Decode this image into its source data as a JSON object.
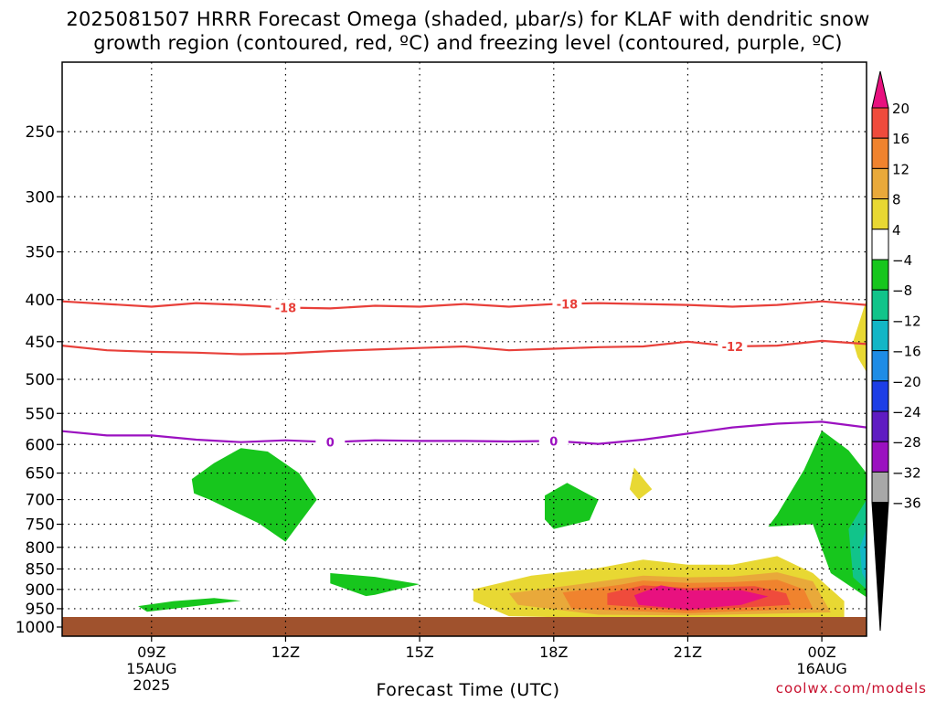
{
  "chart_data": {
    "type": "heatmap",
    "title_line1": "2025081507 HRRR Forecast Omega (shaded, µbar/s) for KLAF with dendritic snow",
    "title_line2": "growth region (contoured, red, ºC) and freezing level (contoured, purple, ºC)",
    "xlabel": "Forecast Time (UTC)",
    "ylabel": "",
    "y_axis": {
      "scale": "pressure (hPa), increasing downward",
      "ticks": [
        250,
        300,
        350,
        400,
        450,
        500,
        550,
        600,
        650,
        700,
        750,
        800,
        850,
        900,
        950,
        1000
      ],
      "ylim": [
        1000,
        200
      ]
    },
    "x_axis": {
      "start_hour_utc": 7,
      "end_hour_utc": 25,
      "ticks": [
        {
          "hour": 9,
          "label": "09Z",
          "date": "15AUG",
          "year": "2025"
        },
        {
          "hour": 12,
          "label": "12Z",
          "date": "",
          "year": ""
        },
        {
          "hour": 15,
          "label": "15Z",
          "date": "",
          "year": ""
        },
        {
          "hour": 18,
          "label": "18Z",
          "date": "",
          "year": ""
        },
        {
          "hour": 21,
          "label": "21Z",
          "date": "",
          "year": ""
        },
        {
          "hour": 24,
          "label": "00Z",
          "date": "16AUG",
          "year": ""
        }
      ]
    },
    "grid": true,
    "colorbar": {
      "labels": [
        "20",
        "16",
        "12",
        "8",
        "4",
        "−4",
        "−8",
        "−12",
        "−16",
        "−20",
        "−24",
        "−28",
        "−32",
        "−36"
      ],
      "colors": [
        "#e8117f",
        "#ef4b3c",
        "#f0832e",
        "#e9a93a",
        "#e8d833",
        "#ffffff",
        "#17c61d",
        "#11c48a",
        "#13b6c6",
        "#1e8ce6",
        "#1d3ee6",
        "#5f1cc2",
        "#9b11c0",
        "#a8a8a8",
        "#000000"
      ],
      "placement": "right"
    },
    "contours": [
      {
        "label": "-18",
        "color": "#e8403a",
        "label_positions": [
          12,
          18.3
        ],
        "points": [
          [
            7,
            402
          ],
          [
            8,
            405
          ],
          [
            9,
            408
          ],
          [
            10,
            404
          ],
          [
            11,
            406
          ],
          [
            12,
            409
          ],
          [
            13,
            410
          ],
          [
            14,
            407
          ],
          [
            15,
            408
          ],
          [
            16,
            405
          ],
          [
            17,
            408
          ],
          [
            18,
            405
          ],
          [
            19,
            404
          ],
          [
            20,
            405
          ],
          [
            21,
            406
          ],
          [
            22,
            408
          ],
          [
            23,
            406
          ],
          [
            24,
            402
          ],
          [
            25,
            406
          ]
        ]
      },
      {
        "label": "-12",
        "color": "#e8403a",
        "label_positions": [
          22
        ],
        "points": [
          [
            7,
            455
          ],
          [
            8,
            461
          ],
          [
            9,
            463
          ],
          [
            10,
            464
          ],
          [
            11,
            466
          ],
          [
            12,
            465
          ],
          [
            13,
            462
          ],
          [
            14,
            460
          ],
          [
            15,
            458
          ],
          [
            16,
            456
          ],
          [
            17,
            461
          ],
          [
            18,
            459
          ],
          [
            19,
            457
          ],
          [
            20,
            456
          ],
          [
            21,
            450
          ],
          [
            22,
            456
          ],
          [
            23,
            455
          ],
          [
            24,
            449
          ],
          [
            25,
            453
          ]
        ]
      },
      {
        "label": "0",
        "color": "#9b11c0",
        "label_positions": [
          13,
          18
        ],
        "points": [
          [
            7,
            578
          ],
          [
            8,
            585
          ],
          [
            9,
            585
          ],
          [
            10,
            592
          ],
          [
            11,
            596
          ],
          [
            12,
            593
          ],
          [
            13,
            596
          ],
          [
            14,
            593
          ],
          [
            15,
            594
          ],
          [
            16,
            594
          ],
          [
            17,
            595
          ],
          [
            18,
            594
          ],
          [
            19,
            599
          ],
          [
            20,
            592
          ],
          [
            21,
            582
          ],
          [
            22,
            572
          ],
          [
            23,
            566
          ],
          [
            24,
            563
          ],
          [
            25,
            572
          ]
        ]
      }
    ],
    "omega_regions": [
      {
        "value_range": "-8 to -4",
        "color": "#17c61d",
        "points": [
          [
            9.9,
            661
          ],
          [
            10.4,
            632
          ],
          [
            11.0,
            606
          ],
          [
            11.6,
            612
          ],
          [
            12.3,
            650
          ],
          [
            12.7,
            700
          ],
          [
            12.0,
            788
          ],
          [
            11.4,
            748
          ],
          [
            10.3,
            700
          ],
          [
            9.95,
            688
          ]
        ]
      },
      {
        "value_range": "-8 to -4",
        "color": "#17c61d",
        "points": [
          [
            8.7,
            943
          ],
          [
            9.5,
            930
          ],
          [
            10.4,
            922
          ],
          [
            11.0,
            929
          ],
          [
            8.9,
            958
          ]
        ]
      },
      {
        "value_range": "-8 to -4",
        "color": "#17c61d",
        "points": [
          [
            13.0,
            860
          ],
          [
            14.0,
            869
          ],
          [
            15.0,
            887
          ],
          [
            14.5,
            900
          ],
          [
            14.0,
            914
          ],
          [
            13.8,
            917
          ],
          [
            13.0,
            885
          ]
        ]
      },
      {
        "value_range": "-8 to -4",
        "color": "#17c61d",
        "points": [
          [
            17.8,
            692
          ],
          [
            18.3,
            668
          ],
          [
            19.0,
            700
          ],
          [
            18.8,
            742
          ],
          [
            18.0,
            760
          ],
          [
            17.8,
            740
          ]
        ]
      },
      {
        "value_range": "-8 to -4",
        "color": "#17c61d",
        "points": [
          [
            23.0,
            730
          ],
          [
            23.6,
            644
          ],
          [
            24.0,
            577
          ],
          [
            24.6,
            610
          ],
          [
            25.0,
            650
          ],
          [
            25.0,
            920
          ],
          [
            24.2,
            860
          ],
          [
            23.8,
            750
          ],
          [
            22.8,
            755
          ]
        ]
      },
      {
        "value_range": "-12 to -8",
        "color": "#11c48a",
        "points": [
          [
            24.6,
            760
          ],
          [
            25.0,
            700
          ],
          [
            25.0,
            900
          ],
          [
            24.7,
            870
          ]
        ]
      },
      {
        "value_range": "-16 to -12",
        "color": "#13b6c6",
        "points": [
          [
            24.85,
            800
          ],
          [
            25.0,
            760
          ],
          [
            25.0,
            880
          ],
          [
            24.9,
            860
          ]
        ]
      },
      {
        "value_range": "4 to 8",
        "color": "#e8d833",
        "points": [
          [
            16.2,
            900
          ],
          [
            17.5,
            866
          ],
          [
            19.0,
            848
          ],
          [
            20.0,
            828
          ],
          [
            21.0,
            840
          ],
          [
            22.0,
            840
          ],
          [
            23.0,
            820
          ],
          [
            23.8,
            860
          ],
          [
            24.5,
            930
          ],
          [
            24.5,
            980
          ],
          [
            22.0,
            975
          ],
          [
            19.0,
            975
          ],
          [
            17.0,
            970
          ],
          [
            16.2,
            930
          ]
        ]
      },
      {
        "value_range": "4 to 8",
        "color": "#e8d833",
        "points": [
          [
            19.8,
            640
          ],
          [
            20.2,
            680
          ],
          [
            19.9,
            700
          ],
          [
            19.7,
            680
          ]
        ]
      },
      {
        "value_range": "4 to 8",
        "color": "#e8d833",
        "points": [
          [
            24.7,
            450
          ],
          [
            25.0,
            400
          ],
          [
            25.0,
            490
          ],
          [
            24.8,
            470
          ]
        ]
      },
      {
        "value_range": "8 to 12",
        "color": "#e9a93a",
        "points": [
          [
            17.0,
            910
          ],
          [
            18.5,
            888
          ],
          [
            20.0,
            866
          ],
          [
            21.0,
            870
          ],
          [
            22.0,
            868
          ],
          [
            23.0,
            858
          ],
          [
            23.8,
            880
          ],
          [
            24.2,
            960
          ],
          [
            21.0,
            968
          ],
          [
            19.0,
            966
          ],
          [
            17.2,
            940
          ]
        ]
      },
      {
        "value_range": "12 to 16",
        "color": "#f0832e",
        "points": [
          [
            18.2,
            908
          ],
          [
            19.5,
            888
          ],
          [
            20.0,
            878
          ],
          [
            21.0,
            884
          ],
          [
            22.0,
            882
          ],
          [
            23.0,
            876
          ],
          [
            23.6,
            900
          ],
          [
            23.8,
            950
          ],
          [
            21.0,
            962
          ],
          [
            18.4,
            950
          ]
        ]
      },
      {
        "value_range": "16 to 20",
        "color": "#ef4b3c",
        "points": [
          [
            19.2,
            910
          ],
          [
            20.0,
            890
          ],
          [
            21.0,
            896
          ],
          [
            22.5,
            892
          ],
          [
            23.2,
            910
          ],
          [
            23.3,
            940
          ],
          [
            21.0,
            955
          ],
          [
            19.2,
            940
          ]
        ]
      },
      {
        "value_range": "> 20",
        "color": "#e8117f",
        "points": [
          [
            19.8,
            915
          ],
          [
            20.4,
            890
          ],
          [
            21.0,
            902
          ],
          [
            22.2,
            902
          ],
          [
            22.8,
            918
          ],
          [
            22.2,
            940
          ],
          [
            21.0,
            952
          ],
          [
            19.9,
            940
          ]
        ]
      }
    ]
  },
  "credit": "coolwx.com/models"
}
